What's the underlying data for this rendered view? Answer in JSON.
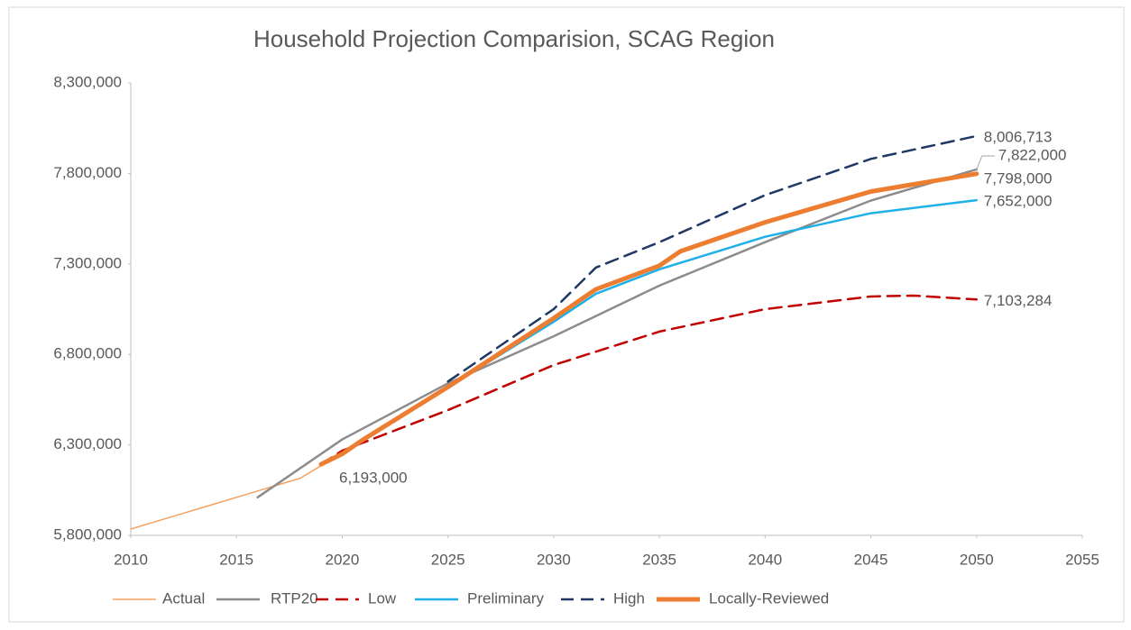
{
  "chart_data": {
    "type": "line",
    "title": "Household Projection Comparision, SCAG Region",
    "xlim": [
      2010,
      2055
    ],
    "xticks": [
      2010,
      2015,
      2020,
      2025,
      2030,
      2035,
      2040,
      2045,
      2050,
      2055
    ],
    "ylim": [
      5800000,
      8300000
    ],
    "yticks": [
      {
        "value": 5800000,
        "label": "5,800,000"
      },
      {
        "value": 6300000,
        "label": "6,300,000"
      },
      {
        "value": 6800000,
        "label": "6,800,000"
      },
      {
        "value": 7300000,
        "label": "7,300,000"
      },
      {
        "value": 7800000,
        "label": "7,800,000"
      },
      {
        "value": 8300000,
        "label": "8,300,000"
      }
    ],
    "legend": "bottom",
    "series": [
      {
        "name": "Actual",
        "color": "#f4a261",
        "dashed": false,
        "x": [
          2010,
          2011,
          2012,
          2013,
          2014,
          2015,
          2016,
          2017,
          2018,
          2019
        ],
        "values": [
          5835000,
          5870000,
          5905000,
          5940000,
          5975000,
          6010000,
          6045000,
          6080000,
          6115000,
          6185000
        ]
      },
      {
        "name": "RTP20",
        "color": "#8c8c8c",
        "dashed": false,
        "x": [
          2016,
          2020,
          2025,
          2030,
          2035,
          2040,
          2045,
          2050
        ],
        "values": [
          6010000,
          6330000,
          6640000,
          6900000,
          7180000,
          7420000,
          7650000,
          7822000
        ],
        "value_labels": [
          null,
          null,
          null,
          null,
          null,
          null,
          null,
          "7,822,000"
        ]
      },
      {
        "name": "Low",
        "color": "#c00000",
        "dashed": true,
        "x": [
          2019,
          2020,
          2025,
          2030,
          2035,
          2040,
          2045,
          2047,
          2050
        ],
        "values": [
          6193000,
          6268000,
          6492000,
          6741000,
          6926000,
          7050000,
          7120000,
          7125000,
          7103284
        ],
        "value_labels": [
          null,
          null,
          null,
          null,
          null,
          null,
          null,
          null,
          "7,103,284"
        ]
      },
      {
        "name": "Preliminary",
        "color": "#1fb0e8",
        "dashed": false,
        "x": [
          2019,
          2020,
          2025,
          2030,
          2032,
          2035,
          2040,
          2045,
          2050
        ],
        "values": [
          6193000,
          6250000,
          6620000,
          6980000,
          7135000,
          7270000,
          7450000,
          7580000,
          7652000
        ],
        "value_labels": [
          null,
          null,
          null,
          null,
          null,
          null,
          null,
          null,
          "7,652,000"
        ]
      },
      {
        "name": "High",
        "color": "#1f3864",
        "dashed": true,
        "x": [
          2025,
          2030,
          2032,
          2035,
          2040,
          2045,
          2050
        ],
        "values": [
          6650000,
          7050000,
          7280000,
          7420000,
          7680000,
          7880000,
          8006713
        ],
        "value_labels": [
          null,
          null,
          null,
          null,
          null,
          null,
          "8,006,713"
        ]
      },
      {
        "name": "Locally-Reviewed",
        "color": "#ed7d31",
        "dashed": false,
        "x": [
          2019,
          2020,
          2021,
          2025,
          2030,
          2032,
          2035,
          2036,
          2040,
          2045,
          2050
        ],
        "values": [
          6193000,
          6250000,
          6330000,
          6620000,
          7000000,
          7160000,
          7290000,
          7370000,
          7530000,
          7700000,
          7798000
        ],
        "value_labels": [
          "6,193,000",
          null,
          null,
          null,
          null,
          null,
          null,
          null,
          null,
          null,
          "7,798,000"
        ]
      }
    ]
  }
}
